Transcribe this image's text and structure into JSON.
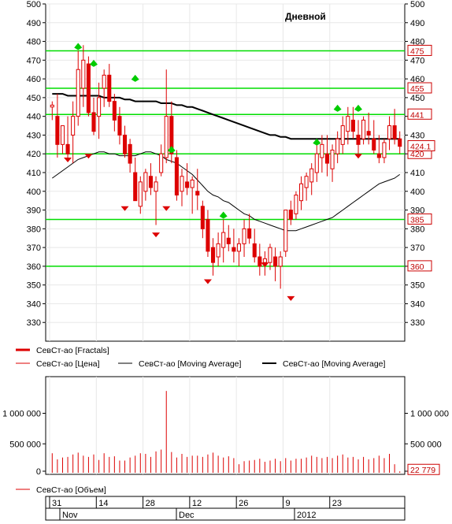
{
  "title": "Дневной",
  "colors": {
    "candle_up": "#ffffff",
    "candle_down": "#dd0000",
    "candle_outline": "#dd0000",
    "ma_long": "#000000",
    "ma_short": "#000000",
    "level_line": "#00dd00",
    "fractal_up": "#00cc00",
    "fractal_down": "#dd0000",
    "grid": "#e8e8e8",
    "volume": "#dd0000",
    "value_tag": "#cc0000"
  },
  "legend": [
    {
      "label": "СевСт-ао [Fractals]",
      "style": "red-thick"
    },
    {
      "label": "СевСт-ао [Цена]",
      "style": "red-thin"
    },
    {
      "label": "СевСт-ао [Moving Average]",
      "style": "black-thin"
    },
    {
      "label": "СевСт-ао [Moving Average]",
      "style": "black-thick"
    }
  ],
  "volume_legend": "СевСт-ао [Объем]",
  "date_axis": {
    "days": [
      "31",
      "14",
      "28",
      "12",
      "26",
      "9",
      "23"
    ],
    "months": [
      "Nov",
      "Dec",
      "2012"
    ]
  },
  "chart_data": [
    {
      "type": "candlestick",
      "title": "Дневной",
      "ylim": [
        320,
        500
      ],
      "yticks": [
        330,
        340,
        350,
        360,
        370,
        380,
        390,
        400,
        410,
        420,
        430,
        440,
        450,
        460,
        470,
        480,
        490,
        500
      ],
      "series": [
        {
          "name": "СевСт-ао [Цена]",
          "ohlc": [
            [
              445,
              448,
              438,
              446
            ],
            [
              440,
              452,
              418,
              425
            ],
            [
              425,
              435,
              420,
              435
            ],
            [
              425,
              440,
              418,
              420
            ],
            [
              430,
              448,
              415,
              440
            ],
            [
              440,
              475,
              435,
              465
            ],
            [
              455,
              478,
              445,
              470
            ],
            [
              468,
              472,
              440,
              442
            ],
            [
              442,
              450,
              430,
              432
            ],
            [
              440,
              458,
              428,
              450
            ],
            [
              455,
              465,
              445,
              462
            ],
            [
              462,
              468,
              445,
              448
            ],
            [
              448,
              452,
              432,
              438
            ],
            [
              440,
              445,
              425,
              430
            ],
            [
              430,
              435,
              418,
              420
            ],
            [
              425,
              428,
              410,
              415
            ],
            [
              410,
              418,
              395,
              395
            ],
            [
              392,
              408,
              388,
              405
            ],
            [
              400,
              412,
              395,
              410
            ],
            [
              408,
              415,
              398,
              402
            ],
            [
              400,
              408,
              382,
              405
            ],
            [
              410,
              425,
              408,
              420
            ],
            [
              418,
              465,
              415,
              440
            ],
            [
              440,
              448,
              415,
              420
            ],
            [
              418,
              422,
              395,
              398
            ],
            [
              400,
              412,
              392,
              408
            ],
            [
              405,
              415,
              398,
              402
            ],
            [
              402,
              408,
              388,
              406
            ],
            [
              400,
              412,
              390,
              398
            ],
            [
              392,
              395,
              375,
              380
            ],
            [
              385,
              390,
              365,
              368
            ],
            [
              370,
              375,
              355,
              362
            ],
            [
              365,
              378,
              360,
              372
            ],
            [
              370,
              385,
              362,
              378
            ],
            [
              375,
              382,
              368,
              372
            ],
            [
              370,
              380,
              362,
              368
            ],
            [
              368,
              375,
              360,
              372
            ],
            [
              372,
              385,
              365,
              380
            ],
            [
              380,
              388,
              372,
              375
            ],
            [
              372,
              380,
              362,
              365
            ],
            [
              365,
              372,
              355,
              360
            ],
            [
              362,
              368,
              355,
              364
            ],
            [
              362,
              372,
              358,
              370
            ],
            [
              365,
              370,
              352,
              360
            ],
            [
              360,
              368,
              348,
              365
            ],
            [
              368,
              390,
              365,
              390
            ],
            [
              390,
              395,
              382,
              385
            ],
            [
              388,
              400,
              385,
              398
            ],
            [
              395,
              408,
              390,
              404
            ],
            [
              402,
              410,
              395,
              408
            ],
            [
              405,
              415,
              398,
              412
            ],
            [
              410,
              425,
              405,
              420
            ],
            [
              418,
              430,
              410,
              425
            ],
            [
              420,
              430,
              408,
              415
            ],
            [
              412,
              425,
              405,
              422
            ],
            [
              420,
              432,
              415,
              428
            ],
            [
              425,
              440,
              420,
              435
            ],
            [
              432,
              445,
              425,
              440
            ],
            [
              438,
              445,
              428,
              432
            ],
            [
              430,
              438,
              420,
              425
            ],
            [
              428,
              440,
              425,
              438
            ],
            [
              432,
              442,
              425,
              430
            ],
            [
              428,
              438,
              420,
              422
            ],
            [
              420,
              430,
              415,
              418
            ],
            [
              418,
              428,
              415,
              426
            ],
            [
              428,
              440,
              422,
              435
            ],
            [
              435,
              444,
              425,
              428
            ],
            [
              428,
              432,
              420,
              424
            ]
          ]
        },
        {
          "name": "СевСт-ао [Moving Average]",
          "period_style": "long",
          "values": [
            452,
            452,
            452,
            451,
            451,
            451,
            451,
            451,
            451,
            451,
            450,
            450,
            450,
            450,
            449,
            449,
            448,
            448,
            448,
            448,
            448,
            447,
            447,
            447,
            446,
            446,
            445,
            445,
            444,
            443,
            442,
            441,
            440,
            439,
            438,
            437,
            436,
            435,
            434,
            433,
            432,
            431,
            430,
            430,
            429,
            429,
            428,
            428,
            428,
            428,
            428,
            428,
            428,
            428,
            428,
            428,
            428,
            428,
            428,
            428,
            428,
            428,
            428,
            428,
            428,
            428,
            428,
            428
          ]
        },
        {
          "name": "СевСт-ао [Moving Average]",
          "period_style": "short",
          "values": [
            407,
            409,
            411,
            413,
            415,
            417,
            418,
            419,
            420,
            421,
            421,
            420,
            420,
            419,
            419,
            419,
            419,
            420,
            421,
            421,
            420,
            419,
            417,
            416,
            415,
            413,
            411,
            409,
            406,
            403,
            400,
            398,
            397,
            395,
            394,
            392,
            390,
            388,
            387,
            385,
            384,
            383,
            382,
            381,
            380,
            379,
            379,
            379,
            380,
            381,
            382,
            383,
            384,
            385,
            386,
            388,
            390,
            392,
            394,
            396,
            398,
            400,
            402,
            404,
            405,
            406,
            407,
            409
          ]
        }
      ],
      "levels": [
        475,
        455,
        441,
        420,
        385,
        360
      ],
      "last_price": 424.1,
      "fractals_up": [
        [
          5,
          475
        ],
        [
          8,
          466
        ],
        [
          16,
          458
        ],
        [
          23,
          420
        ],
        [
          33,
          385
        ],
        [
          51,
          424
        ],
        [
          55,
          442
        ],
        [
          59,
          442
        ]
      ],
      "fractals_down": [
        [
          3,
          418
        ],
        [
          7,
          420
        ],
        [
          14,
          392
        ],
        [
          20,
          378
        ],
        [
          22,
          392
        ],
        [
          30,
          353
        ],
        [
          41,
          362
        ],
        [
          46,
          344
        ],
        [
          59,
          420
        ]
      ]
    },
    {
      "type": "bar",
      "title": "",
      "ylabel": "",
      "ylim": [
        0,
        1600000
      ],
      "yticks": [
        0,
        500000,
        1000000
      ],
      "ytick_labels": [
        "0",
        "500 000",
        "1 000 000"
      ],
      "series": [
        {
          "name": "СевСт-ао [Объем]",
          "values": [
            320000,
            220000,
            250000,
            260000,
            300000,
            330000,
            280000,
            260000,
            300000,
            210000,
            320000,
            260000,
            270000,
            200000,
            200000,
            250000,
            280000,
            320000,
            310000,
            260000,
            350000,
            380000,
            1340000,
            340000,
            250000,
            310000,
            260000,
            280000,
            280000,
            260000,
            300000,
            330000,
            280000,
            250000,
            270000,
            240000,
            140000,
            190000,
            200000,
            210000,
            230000,
            180000,
            200000,
            230000,
            190000,
            240000,
            200000,
            230000,
            230000,
            250000,
            280000,
            260000,
            240000,
            260000,
            240000,
            280000,
            300000,
            250000,
            260000,
            220000,
            260000,
            220000,
            240000,
            280000,
            240000,
            310000,
            140000,
            22779
          ]
        }
      ],
      "last_value_label": "22 779"
    }
  ]
}
